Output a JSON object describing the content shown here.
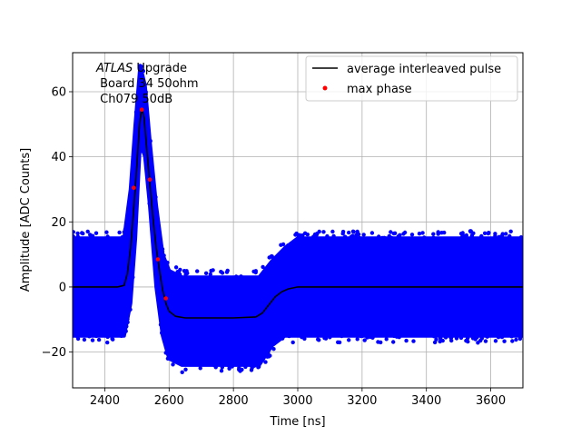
{
  "chart_data": {
    "type": "scatter",
    "xlabel": "Time [ns]",
    "ylabel": "Amplitude [ADC Counts]",
    "xlim": [
      2300,
      3700
    ],
    "ylim": [
      -31,
      72
    ],
    "xticks": [
      2400,
      2600,
      2800,
      3000,
      3200,
      3400,
      3600
    ],
    "yticks": [
      -20,
      0,
      20,
      40,
      60
    ],
    "grid": true,
    "legend_position": "top-right",
    "annotation": {
      "lines": [
        "ATLAS Upgrade",
        "Board 34 50ohm",
        "Ch079 50dB"
      ],
      "italic_word": "ATLAS",
      "rest_first_line": " Upgrade"
    },
    "series": [
      {
        "name": "",
        "kind": "scatter-band",
        "color": "#0000ff",
        "description_points": [
          {
            "x": 2300,
            "upper": 15,
            "lower": -15
          },
          {
            "x": 2460,
            "upper": 15,
            "lower": -15
          },
          {
            "x": 2480,
            "upper": 30,
            "lower": -5
          },
          {
            "x": 2495,
            "upper": 50,
            "lower": 15
          },
          {
            "x": 2510,
            "upper": 68,
            "lower": 45
          },
          {
            "x": 2525,
            "upper": 62,
            "lower": 40
          },
          {
            "x": 2540,
            "upper": 45,
            "lower": 25
          },
          {
            "x": 2560,
            "upper": 25,
            "lower": 0
          },
          {
            "x": 2580,
            "upper": 10,
            "lower": -15
          },
          {
            "x": 2600,
            "upper": 5,
            "lower": -22
          },
          {
            "x": 2640,
            "upper": 3,
            "lower": -24
          },
          {
            "x": 2880,
            "upper": 3,
            "lower": -24
          },
          {
            "x": 2920,
            "upper": 8,
            "lower": -18
          },
          {
            "x": 2960,
            "upper": 12,
            "lower": -15
          },
          {
            "x": 3000,
            "upper": 15,
            "lower": -15
          },
          {
            "x": 3700,
            "upper": 15,
            "lower": -15
          }
        ]
      },
      {
        "name": "average interleaved pulse",
        "kind": "line",
        "color": "#000000",
        "x": [
          2300,
          2440,
          2460,
          2470,
          2480,
          2490,
          2500,
          2508,
          2515,
          2522,
          2530,
          2540,
          2550,
          2560,
          2570,
          2580,
          2590,
          2600,
          2620,
          2650,
          2700,
          2800,
          2870,
          2890,
          2910,
          2930,
          2950,
          2970,
          3000,
          3100,
          3700
        ],
        "y": [
          0,
          0,
          0.5,
          4,
          12,
          24,
          38,
          50,
          55,
          52,
          43,
          32,
          21,
          12,
          5,
          -1,
          -5,
          -7.5,
          -9,
          -9.5,
          -9.5,
          -9.5,
          -9.2,
          -8,
          -5.5,
          -3,
          -1.5,
          -0.6,
          0,
          0,
          0
        ]
      },
      {
        "name": "max phase",
        "kind": "scatter",
        "color": "#ff0000",
        "x": [
          2490,
          2515,
          2540,
          2565,
          2590
        ],
        "y": [
          30.5,
          54.5,
          33,
          8.5,
          -3.5
        ]
      }
    ]
  }
}
